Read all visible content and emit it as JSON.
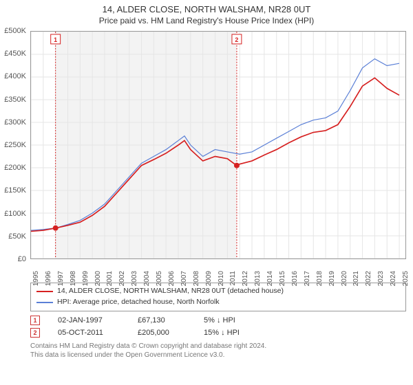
{
  "title": "14, ALDER CLOSE, NORTH WALSHAM, NR28 0UT",
  "subtitle": "Price paid vs. HM Land Registry's House Price Index (HPI)",
  "chart": {
    "type": "line",
    "x_start": 1995,
    "x_end": 2025.5,
    "y_min": 0,
    "y_max": 500000,
    "y_ticks": [
      0,
      50000,
      100000,
      150000,
      200000,
      250000,
      300000,
      350000,
      400000,
      450000,
      500000
    ],
    "y_tick_labels": [
      "£0",
      "£50K",
      "£100K",
      "£150K",
      "£200K",
      "£250K",
      "£300K",
      "£350K",
      "£400K",
      "£450K",
      "£500K"
    ],
    "x_ticks": [
      1995,
      1996,
      1997,
      1998,
      1999,
      2000,
      2001,
      2002,
      2003,
      2004,
      2005,
      2006,
      2007,
      2008,
      2009,
      2010,
      2011,
      2012,
      2013,
      2014,
      2015,
      2016,
      2017,
      2018,
      2019,
      2020,
      2021,
      2022,
      2023,
      2024,
      2025
    ],
    "shade_band": {
      "from": 1997.0,
      "to": 2011.75,
      "color": "#f3f3f3"
    },
    "grid_color": "#e5e5e5",
    "background_color": "#ffffff",
    "border_color": "#999999",
    "series": [
      {
        "name": "HPI: Average price, detached house, North Norfolk",
        "color": "#5a7fd6",
        "width": 1.2,
        "points": [
          [
            1995,
            62000
          ],
          [
            1996,
            64000
          ],
          [
            1997,
            67000
          ],
          [
            1998,
            75000
          ],
          [
            1999,
            84000
          ],
          [
            2000,
            100000
          ],
          [
            2001,
            120000
          ],
          [
            2002,
            150000
          ],
          [
            2003,
            180000
          ],
          [
            2004,
            210000
          ],
          [
            2005,
            225000
          ],
          [
            2006,
            240000
          ],
          [
            2007,
            260000
          ],
          [
            2007.5,
            270000
          ],
          [
            2008,
            250000
          ],
          [
            2009,
            225000
          ],
          [
            2010,
            240000
          ],
          [
            2011,
            235000
          ],
          [
            2012,
            230000
          ],
          [
            2013,
            235000
          ],
          [
            2014,
            250000
          ],
          [
            2015,
            265000
          ],
          [
            2016,
            280000
          ],
          [
            2017,
            295000
          ],
          [
            2018,
            305000
          ],
          [
            2019,
            310000
          ],
          [
            2020,
            325000
          ],
          [
            2021,
            370000
          ],
          [
            2022,
            420000
          ],
          [
            2023,
            440000
          ],
          [
            2024,
            425000
          ],
          [
            2025,
            430000
          ]
        ]
      },
      {
        "name": "14, ALDER CLOSE, NORTH WALSHAM, NR28 0UT (detached house)",
        "color": "#d62020",
        "width": 1.7,
        "points": [
          [
            1995,
            60000
          ],
          [
            1996,
            62000
          ],
          [
            1997,
            67000
          ],
          [
            1998,
            73000
          ],
          [
            1999,
            80000
          ],
          [
            2000,
            95000
          ],
          [
            2001,
            115000
          ],
          [
            2002,
            145000
          ],
          [
            2003,
            175000
          ],
          [
            2004,
            205000
          ],
          [
            2005,
            218000
          ],
          [
            2006,
            232000
          ],
          [
            2007,
            250000
          ],
          [
            2007.5,
            260000
          ],
          [
            2008,
            240000
          ],
          [
            2009,
            215000
          ],
          [
            2010,
            225000
          ],
          [
            2011,
            220000
          ],
          [
            2011.75,
            205000
          ],
          [
            2012,
            208000
          ],
          [
            2013,
            215000
          ],
          [
            2014,
            228000
          ],
          [
            2015,
            240000
          ],
          [
            2016,
            255000
          ],
          [
            2017,
            268000
          ],
          [
            2018,
            278000
          ],
          [
            2019,
            282000
          ],
          [
            2020,
            295000
          ],
          [
            2021,
            335000
          ],
          [
            2022,
            380000
          ],
          [
            2023,
            398000
          ],
          [
            2024,
            375000
          ],
          [
            2025,
            360000
          ]
        ]
      }
    ],
    "markers": [
      {
        "id": "1",
        "x": 1997.0,
        "y": 67130,
        "line_color": "#d62020",
        "line_dash": "2,2"
      },
      {
        "id": "2",
        "x": 2011.76,
        "y": 205000,
        "line_color": "#d62020",
        "line_dash": "2,2"
      }
    ]
  },
  "legend": {
    "items": [
      {
        "color": "#d62020",
        "label": "14, ALDER CLOSE, NORTH WALSHAM, NR28 0UT (detached house)"
      },
      {
        "color": "#5a7fd6",
        "label": "HPI: Average price, detached house, North Norfolk"
      }
    ]
  },
  "sales": [
    {
      "marker": "1",
      "date": "02-JAN-1997",
      "price": "£67,130",
      "hpi": "5% ↓ HPI"
    },
    {
      "marker": "2",
      "date": "05-OCT-2011",
      "price": "£205,000",
      "hpi": "15% ↓ HPI"
    }
  ],
  "attribution": {
    "line1": "Contains HM Land Registry data © Crown copyright and database right 2024.",
    "line2": "This data is licensed under the Open Government Licence v3.0."
  }
}
